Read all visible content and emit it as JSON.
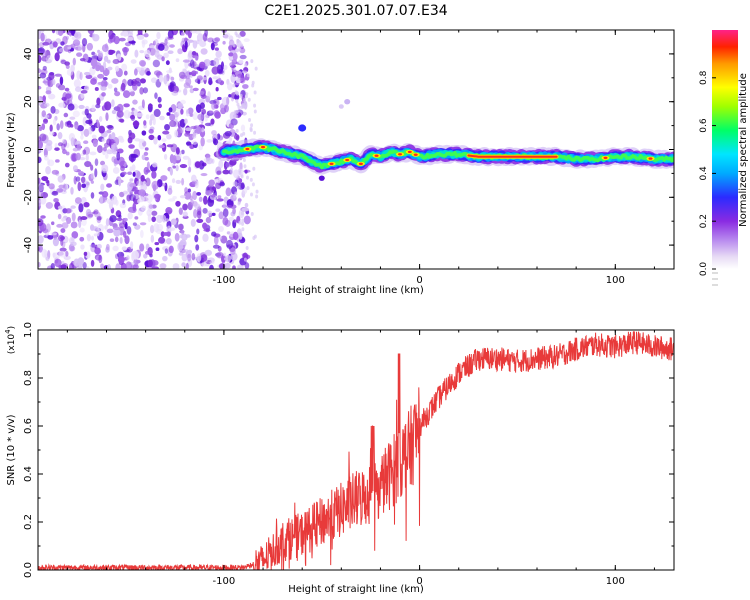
{
  "title": "C2E1.2025.301.07.07.E34",
  "colors": {
    "snr_line": "#e83a3a",
    "noise": "#7b2bd9",
    "axis": "#000000"
  },
  "chart_data": [
    {
      "type": "heatmap",
      "name": "spectrogram",
      "xlabel": "Height of straight line (km)",
      "ylabel": "Frequency (Hz)",
      "xlim": [
        -195,
        130
      ],
      "ylim": [
        -50,
        50
      ],
      "xticks": [
        "-100",
        "0",
        "100"
      ],
      "yticks": [
        "40",
        "20",
        "0",
        "-20",
        "-40"
      ],
      "track": {
        "x": [
          -100,
          -90,
          -80,
          -70,
          -60,
          -50,
          -45,
          -40,
          -35,
          -30,
          -25,
          -20,
          -15,
          -10,
          -5,
          0,
          10,
          20,
          30,
          40,
          50,
          60,
          70,
          80,
          90,
          100,
          110,
          120,
          130
        ],
        "freq": [
          -1,
          0,
          1,
          -1,
          -3,
          -7,
          -6,
          -5,
          -4,
          -6,
          -2,
          -3,
          -1,
          -2,
          -1,
          -3,
          -2,
          -2,
          -3,
          -3,
          -3,
          -3,
          -3,
          -4,
          -4,
          -3,
          -3,
          -4,
          -4
        ]
      },
      "colorbar": {
        "label": "Normalized spectral amplitude",
        "ticks": [
          "0.0",
          "0.2",
          "0.4",
          "0.6",
          "0.8"
        ],
        "range": [
          0,
          1
        ]
      }
    },
    {
      "type": "line",
      "name": "snr",
      "xlabel": "Height of straight line (km)",
      "ylabel": "SNR (10 * v/v)",
      "multiplier": "(x10",
      "multiplier_exp": "4",
      "xlim": [
        -195,
        130
      ],
      "ylim": [
        0,
        1.0
      ],
      "xticks": [
        "-100",
        "0",
        "100"
      ],
      "yticks": [
        "0.0",
        "0.2",
        "0.4",
        "0.6",
        "0.8",
        "1.0"
      ],
      "series": [
        {
          "name": "SNR",
          "x": [
            -195,
            -90,
            -80,
            -70,
            -60,
            -50,
            -40,
            -35,
            -30,
            -25,
            -20,
            -15,
            -10,
            -5,
            0,
            10,
            20,
            30,
            40,
            50,
            60,
            70,
            80,
            90,
            100,
            110,
            120,
            130
          ],
          "values": [
            0.01,
            0.01,
            0.04,
            0.12,
            0.15,
            0.2,
            0.25,
            0.28,
            0.3,
            0.32,
            0.35,
            0.4,
            0.45,
            0.5,
            0.6,
            0.72,
            0.82,
            0.88,
            0.88,
            0.87,
            0.88,
            0.89,
            0.92,
            0.94,
            0.93,
            0.95,
            0.93,
            0.92
          ]
        }
      ]
    }
  ]
}
